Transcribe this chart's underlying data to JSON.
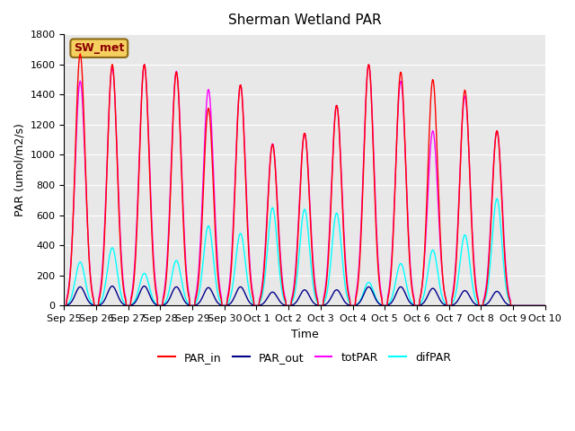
{
  "title": "Sherman Wetland PAR",
  "ylabel": "PAR (umol/m2/s)",
  "xlabel": "Time",
  "ylim": [
    0,
    1800
  ],
  "yticks": [
    0,
    200,
    400,
    600,
    800,
    1000,
    1200,
    1400,
    1600,
    1800
  ],
  "x_tick_labels": [
    "Sep 25",
    "Sep 26",
    "Sep 27",
    "Sep 28",
    "Sep 29",
    "Sep 30",
    "Oct 1",
    "Oct 2",
    "Oct 3",
    "Oct 4",
    "Oct 5",
    "Oct 6",
    "Oct 7",
    "Oct 8",
    "Oct 9",
    "Oct 10"
  ],
  "label_box": "SW_met",
  "legend_labels": [
    "PAR_in",
    "PAR_out",
    "totPAR",
    "difPAR"
  ],
  "line_colors": {
    "PAR_in": "#ff0000",
    "PAR_out": "#00008b",
    "totPAR": "#ff00ff",
    "difPAR": "#00ffff"
  },
  "bg_color": "#e8e8e8",
  "day_peaks": {
    "PAR_in": [
      1670,
      1600,
      1600,
      1550,
      1310,
      1465,
      1070,
      1145,
      1330,
      1600,
      1550,
      1500,
      1430,
      1160,
      0
    ],
    "PAR_out": [
      125,
      130,
      130,
      125,
      120,
      125,
      90,
      105,
      105,
      125,
      125,
      115,
      100,
      95,
      0
    ],
    "totPAR": [
      1490,
      1580,
      1600,
      1555,
      1435,
      1465,
      1075,
      1145,
      1330,
      1600,
      1490,
      1160,
      1390,
      1160,
      0
    ],
    "difPAR": [
      290,
      385,
      215,
      300,
      530,
      480,
      650,
      640,
      615,
      155,
      280,
      370,
      470,
      710,
      0
    ]
  },
  "n_days": 15,
  "points_per_day": 48
}
